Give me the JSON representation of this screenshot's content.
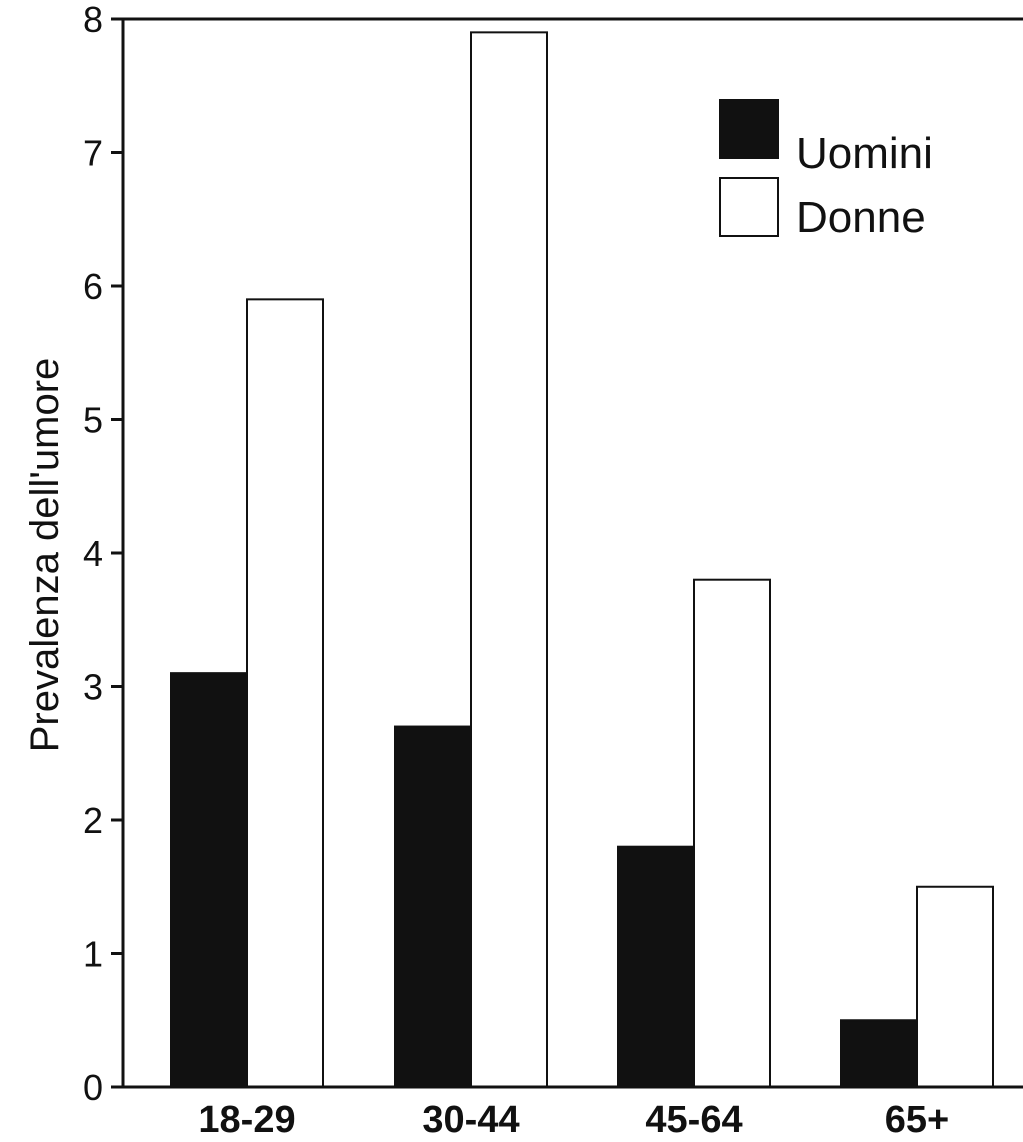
{
  "chart_data": {
    "type": "bar",
    "ylabel": "Prevalenza dell'umore",
    "ylim": [
      0,
      8
    ],
    "yticks": [
      0,
      1,
      2,
      3,
      4,
      5,
      6,
      7,
      8
    ],
    "categories": [
      "18-29",
      "30-44",
      "45-64",
      "65+"
    ],
    "series": [
      {
        "name": "Uomini",
        "color": "#111111",
        "values": [
          3.1,
          2.7,
          1.8,
          0.5
        ]
      },
      {
        "name": "Donne",
        "color": "#ffffff",
        "values": [
          5.9,
          7.9,
          3.8,
          1.5
        ]
      }
    ],
    "legend": {
      "position": "top-right"
    },
    "grid": false
  }
}
